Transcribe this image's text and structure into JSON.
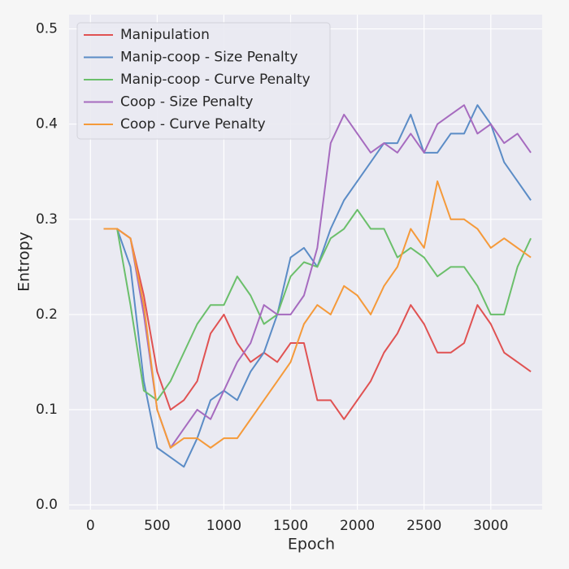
{
  "chart_data": {
    "type": "line",
    "x_label": "Epoch",
    "y_label": "Entropy",
    "x": [
      100,
      200,
      300,
      400,
      500,
      600,
      700,
      800,
      900,
      1000,
      1100,
      1200,
      1300,
      1400,
      1500,
      1600,
      1700,
      1800,
      1900,
      2000,
      2100,
      2200,
      2300,
      2400,
      2500,
      2600,
      2700,
      2800,
      2900,
      3000,
      3100,
      3200,
      3300
    ],
    "series": [
      {
        "name": "Manipulation",
        "color": "#e05252",
        "values": [
          0.29,
          0.29,
          0.28,
          0.22,
          0.14,
          0.1,
          0.11,
          0.13,
          0.18,
          0.2,
          0.17,
          0.15,
          0.16,
          0.15,
          0.17,
          0.17,
          0.11,
          0.11,
          0.09,
          0.11,
          0.13,
          0.16,
          0.18,
          0.21,
          0.19,
          0.16,
          0.16,
          0.17,
          0.21,
          0.19,
          0.16,
          0.15,
          0.14
        ]
      },
      {
        "name": "Manip-coop - Size Penalty",
        "color": "#5b8cc6",
        "values": [
          0.29,
          0.29,
          0.25,
          0.13,
          0.06,
          0.05,
          0.04,
          0.07,
          0.11,
          0.12,
          0.11,
          0.14,
          0.16,
          0.2,
          0.26,
          0.27,
          0.25,
          0.29,
          0.32,
          0.34,
          0.36,
          0.38,
          0.38,
          0.41,
          0.37,
          0.37,
          0.39,
          0.39,
          0.42,
          0.4,
          0.36,
          0.34,
          0.32
        ]
      },
      {
        "name": "Manip-coop - Curve Penalty",
        "color": "#6bbf6b",
        "values": [
          0.29,
          0.29,
          0.21,
          0.12,
          0.11,
          0.13,
          0.16,
          0.19,
          0.21,
          0.21,
          0.24,
          0.22,
          0.19,
          0.2,
          0.24,
          0.255,
          0.25,
          0.28,
          0.29,
          0.31,
          0.29,
          0.29,
          0.26,
          0.27,
          0.26,
          0.24,
          0.25,
          0.25,
          0.23,
          0.2,
          0.2,
          0.25,
          0.28
        ]
      },
      {
        "name": "Coop - Size Penalty",
        "color": "#a66bbf",
        "values": [
          0.29,
          0.29,
          0.28,
          0.2,
          0.1,
          0.06,
          0.08,
          0.1,
          0.09,
          0.12,
          0.15,
          0.17,
          0.21,
          0.2,
          0.2,
          0.22,
          0.27,
          0.38,
          0.41,
          0.39,
          0.37,
          0.38,
          0.37,
          0.39,
          0.37,
          0.4,
          0.41,
          0.42,
          0.39,
          0.4,
          0.38,
          0.39,
          0.37
        ]
      },
      {
        "name": "Coop - Curve Penalty",
        "color": "#f59a3a",
        "values": [
          0.29,
          0.29,
          0.28,
          0.21,
          0.1,
          0.06,
          0.07,
          0.07,
          0.06,
          0.07,
          0.07,
          0.09,
          0.11,
          0.13,
          0.15,
          0.19,
          0.21,
          0.2,
          0.23,
          0.22,
          0.2,
          0.23,
          0.25,
          0.29,
          0.27,
          0.34,
          0.3,
          0.3,
          0.29,
          0.27,
          0.28,
          0.27,
          0.26
        ]
      }
    ],
    "xlim": [
      -160,
      3385
    ],
    "xticks": [
      0,
      500,
      1000,
      1500,
      2000,
      2500,
      3000
    ],
    "ylim": [
      -0.005,
      0.515
    ],
    "yticks": [
      {
        "value": 0,
        "label": "0.0"
      },
      0.1,
      0.2,
      0.3,
      0.4,
      0.5
    ],
    "grid": true,
    "legend": "upper left"
  }
}
